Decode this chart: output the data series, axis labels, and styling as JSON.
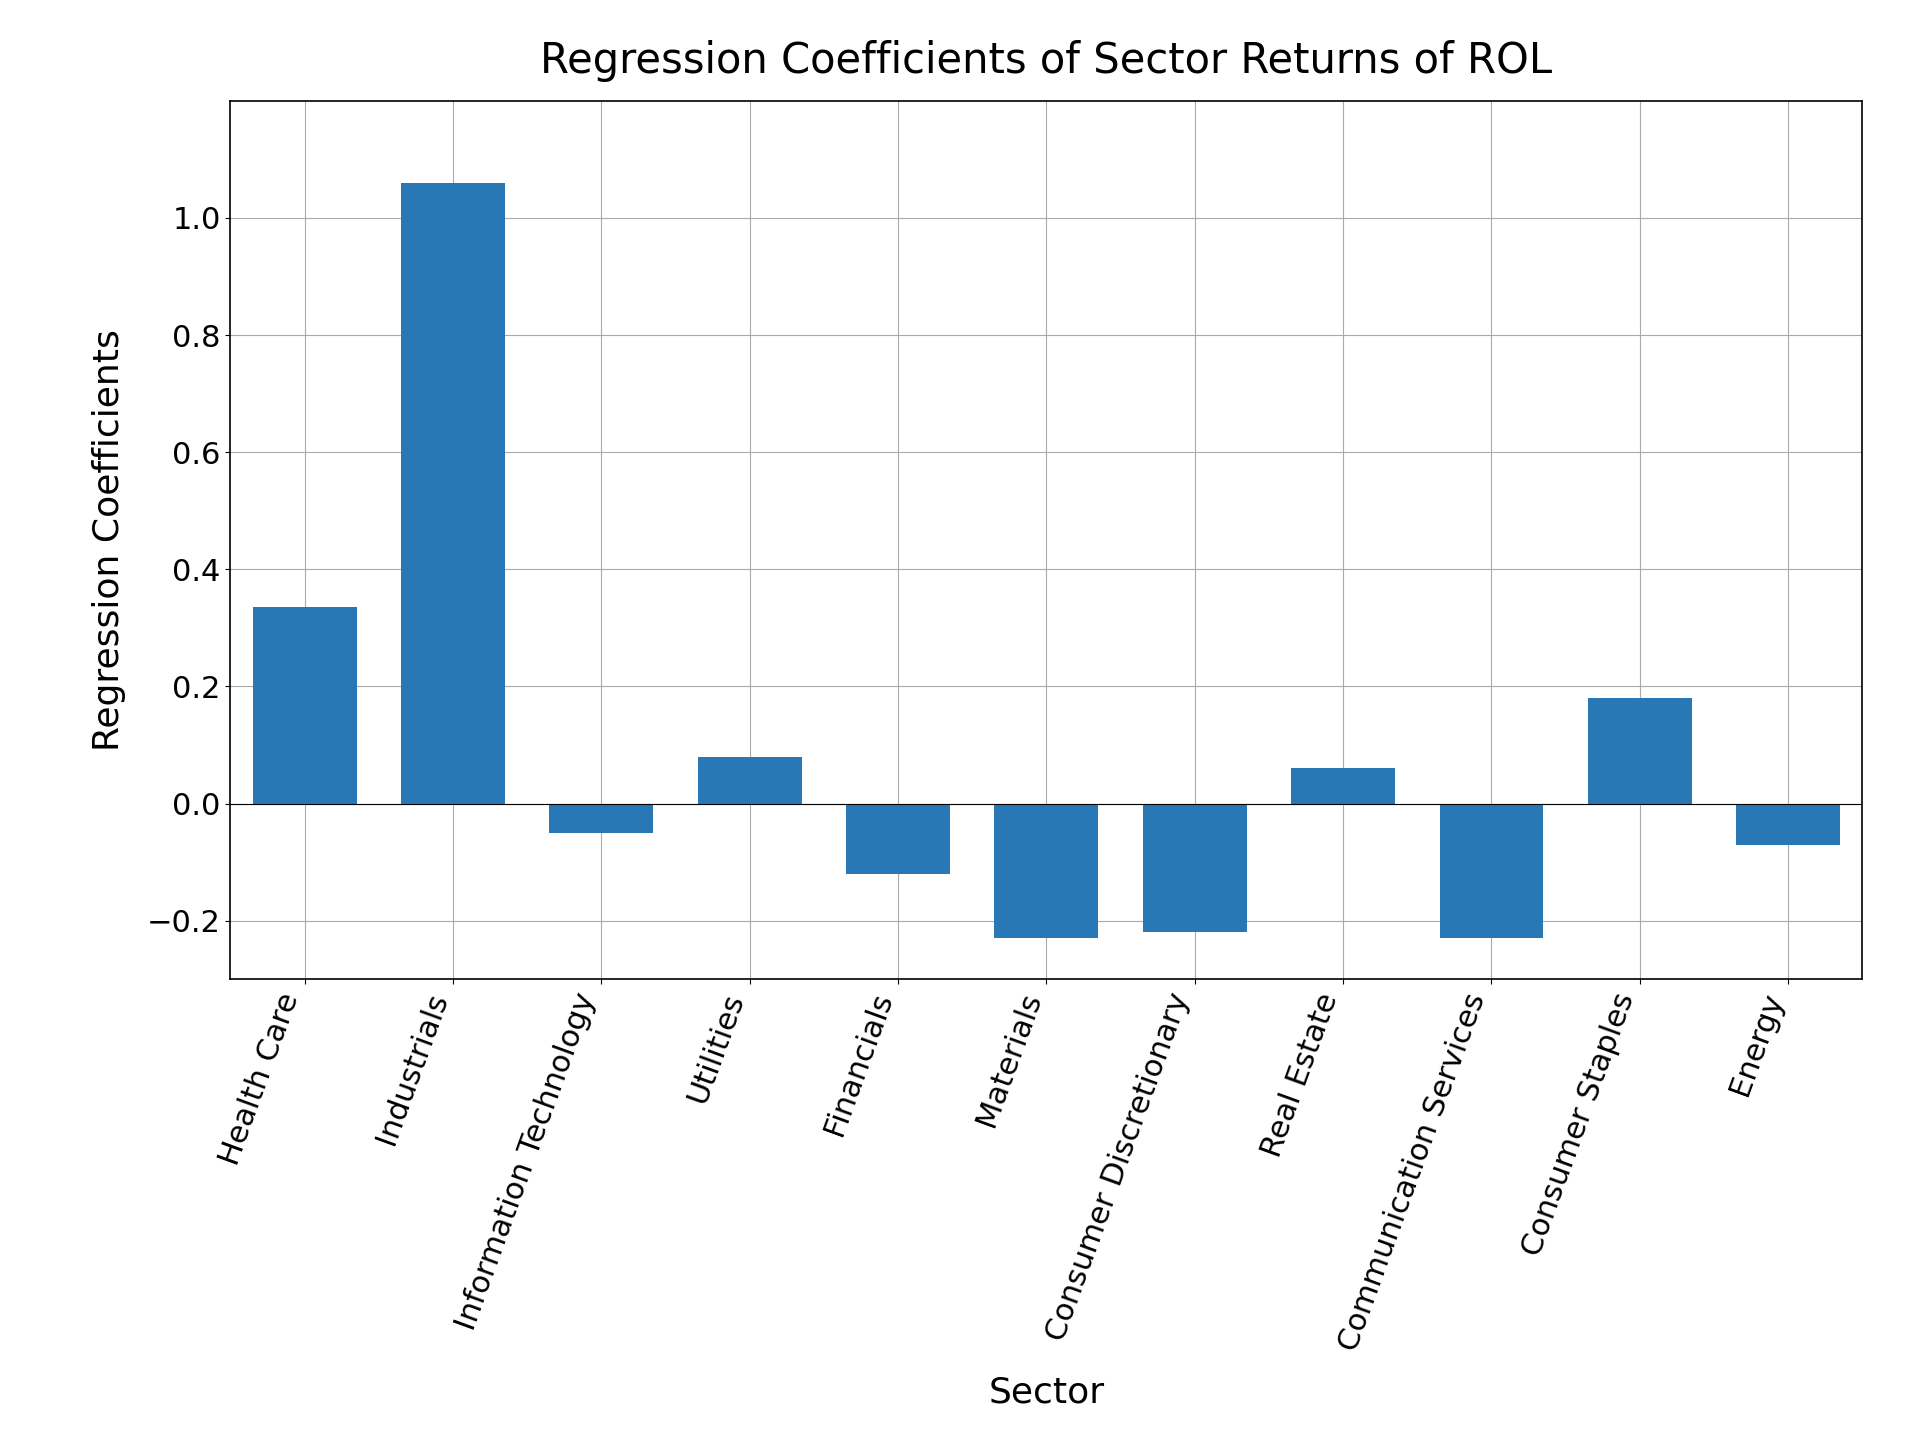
{
  "categories": [
    "Health Care",
    "Industrials",
    "Information Technology",
    "Utilities",
    "Financials",
    "Materials",
    "Consumer Discretionary",
    "Real Estate",
    "Communication Services",
    "Consumer Staples",
    "Energy"
  ],
  "values": [
    0.335,
    1.06,
    -0.05,
    0.08,
    -0.12,
    -0.23,
    -0.22,
    0.06,
    -0.23,
    0.18,
    -0.07
  ],
  "bar_color": "#2878b5",
  "title": "Regression Coefficients of Sector Returns of ROL",
  "xlabel": "Sector",
  "ylabel": "Regression Coefficients",
  "ylim": [
    -0.3,
    1.2
  ],
  "yticks": [
    -0.2,
    0.0,
    0.2,
    0.4,
    0.6,
    0.8,
    1.0
  ],
  "title_fontsize": 30,
  "label_fontsize": 26,
  "tick_fontsize": 22,
  "background_color": "#ffffff",
  "grid_color": "#aaaaaa",
  "bar_width": 0.7,
  "xlabel_rotation": 70
}
